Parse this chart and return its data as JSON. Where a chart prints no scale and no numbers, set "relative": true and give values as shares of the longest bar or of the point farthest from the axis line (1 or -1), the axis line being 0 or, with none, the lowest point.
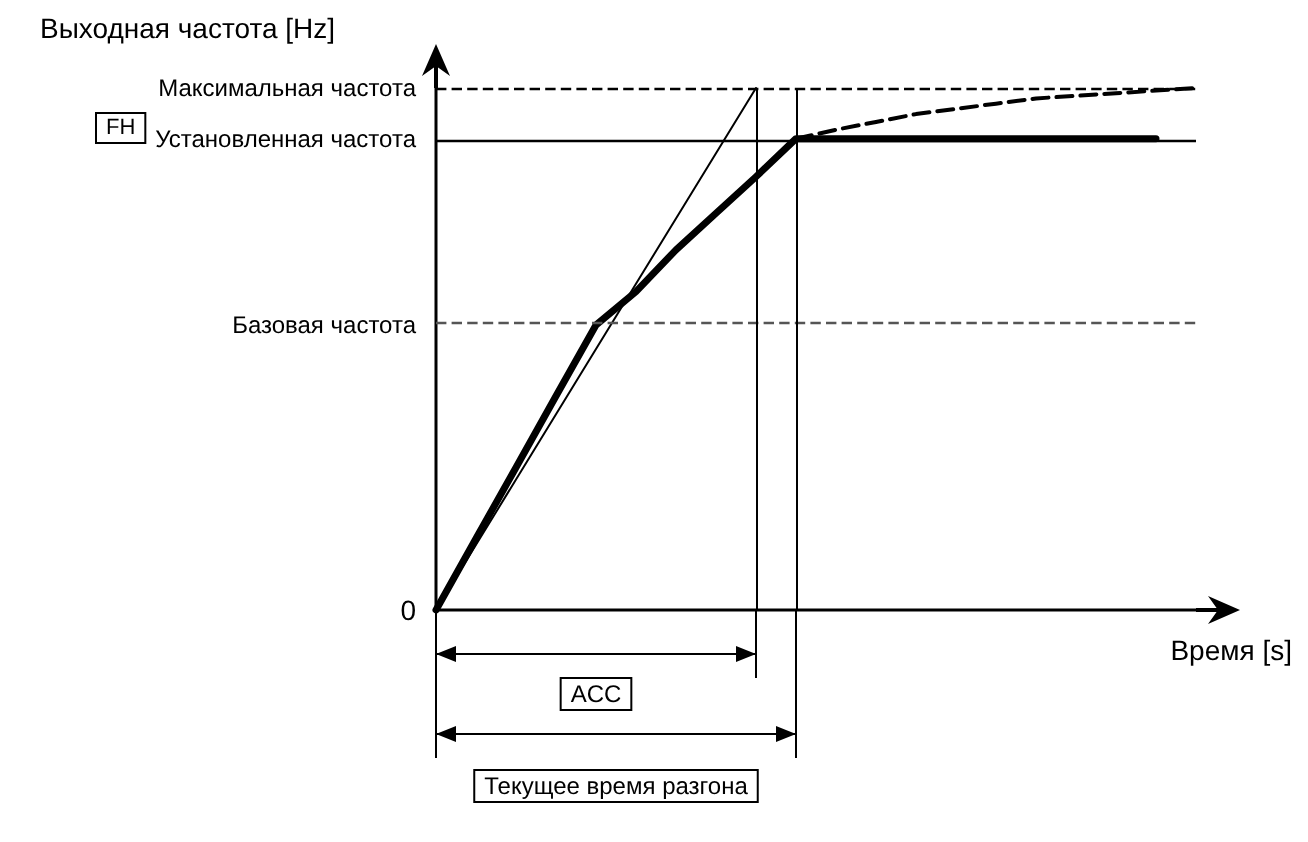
{
  "chart_data": {
    "type": "line",
    "relative": true,
    "ylabel": "Выходная частота [Hz]",
    "xlabel": "Время [s]",
    "categories": [
      null,
      null,
      null,
      null,
      null,
      null,
      null,
      null,
      null,
      null,
      null,
      null,
      null,
      null,
      null,
      null,
      null,
      null,
      null,
      null
    ],
    "series": [
      {
        "color": "#000000",
        "line_style": "solid",
        "values": [
          0,
          0.137,
          0.273,
          0.41,
          0.546,
          0.61,
          0.69,
          0.76,
          0.83,
          0.903,
          0.903,
          0.903,
          0.903,
          0.903,
          0.903,
          0.903,
          0.903,
          0.903,
          0.903,
          null
        ]
      },
      {
        "color": "#000000",
        "line_style": "dashed",
        "values": [
          null,
          null,
          null,
          null,
          null,
          null,
          null,
          null,
          null,
          0.903,
          0.92,
          0.935,
          0.95,
          0.96,
          0.97,
          0.98,
          0.985,
          0.99,
          0.995,
          1.0
        ]
      },
      {
        "color": "#000000",
        "line_style": "solid",
        "values": [
          0,
          0.125,
          0.25,
          0.375,
          0.5,
          0.625,
          0.75,
          0.875,
          1.0,
          null,
          null,
          null,
          null,
          null,
          null,
          null,
          null,
          null,
          null,
          null
        ]
      }
    ],
    "ref_lines": [
      {
        "axis": "y",
        "value": 1.0,
        "label": "Максимальная частота",
        "color": "#000000",
        "line_style": "dashed"
      },
      {
        "axis": "y",
        "value": 0.903,
        "label": "Установленная частота",
        "color": "#000000",
        "line_style": "solid"
      },
      {
        "axis": "y",
        "value": 0.546,
        "label": "Базовая частота",
        "color": "#555555",
        "line_style": "dashed"
      }
    ],
    "annotations": [
      "0",
      "FH",
      "ACC",
      "Текущее время разгона"
    ],
    "grid": false,
    "marker": "none"
  }
}
